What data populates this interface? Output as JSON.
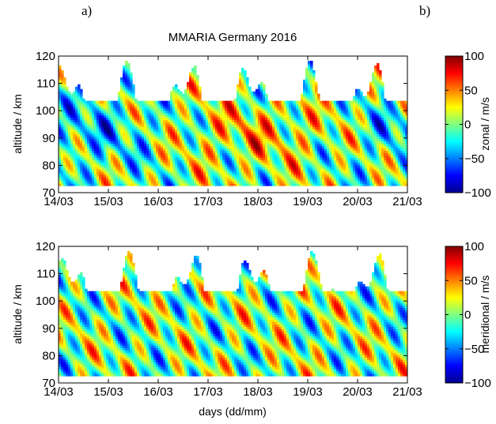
{
  "panels": {
    "a": "a)",
    "b": "b)"
  },
  "chart_data": [
    {
      "type": "heatmap",
      "title": "MMARIA Germany 2016",
      "xlabel": "",
      "ylabel": "altitude / km",
      "x_ticks": [
        "14/03",
        "15/03",
        "16/03",
        "17/03",
        "18/03",
        "19/03",
        "20/03",
        "21/03"
      ],
      "y_ticks": [
        70,
        80,
        90,
        100,
        110,
        120
      ],
      "ylim": [
        70,
        120
      ],
      "colorbar": {
        "label": "zonal / m/s",
        "ticks": [
          100,
          50,
          0,
          -50,
          -100
        ],
        "range": [
          -100,
          100
        ],
        "colormap": "jet"
      },
      "colors": {
        "low": "#00008f",
        "mid": "#7fff7f",
        "high": "#800000"
      }
    },
    {
      "type": "heatmap",
      "title": "",
      "xlabel": "days (dd/mm)",
      "ylabel": "altitude / km",
      "x_ticks": [
        "14/03",
        "15/03",
        "16/03",
        "17/03",
        "18/03",
        "19/03",
        "20/03",
        "21/03"
      ],
      "y_ticks": [
        70,
        80,
        90,
        100,
        110,
        120
      ],
      "ylim": [
        70,
        120
      ],
      "colorbar": {
        "label": "meridional / m/s",
        "ticks": [
          100,
          50,
          0,
          -50,
          -100
        ],
        "range": [
          -100,
          100
        ],
        "colormap": "jet"
      },
      "colors": {
        "low": "#00008f",
        "mid": "#7fff7f",
        "high": "#800000"
      }
    }
  ]
}
